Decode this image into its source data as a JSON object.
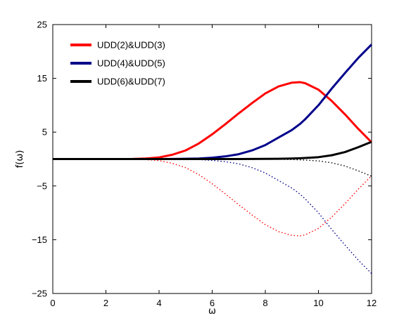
{
  "chart_data": {
    "type": "line",
    "title": "",
    "xlabel": "ω",
    "ylabel": "f(ω)",
    "xlim": [
      0,
      12
    ],
    "ylim": [
      -25,
      25
    ],
    "xticks": [
      "0",
      "2",
      "4",
      "6",
      "8",
      "10",
      "12"
    ],
    "yticks": [
      "25",
      "15",
      "5",
      "−5",
      "−15",
      "−25"
    ],
    "grid": false,
    "legend_position": "top-left",
    "x": [
      0,
      1,
      2,
      3,
      3.5,
      4,
      4.5,
      5,
      5.5,
      6,
      6.5,
      7,
      7.5,
      8,
      8.5,
      9,
      9.3,
      9.5,
      10,
      10.5,
      11,
      11.5,
      12
    ],
    "series": [
      {
        "name": "UDD(2)&UDD(3)",
        "color": "#ff0000",
        "style": "solid",
        "values": [
          0,
          0,
          0,
          0.02,
          0.1,
          0.3,
          0.8,
          1.6,
          2.9,
          4.6,
          6.5,
          8.5,
          10.4,
          12.2,
          13.5,
          14.2,
          14.3,
          14.1,
          12.9,
          10.8,
          8.3,
          5.6,
          3.1
        ]
      },
      {
        "name": "",
        "color": "#ff0000",
        "style": "dotted",
        "values": [
          0,
          0,
          0,
          -0.02,
          -0.1,
          -0.3,
          -0.8,
          -1.6,
          -2.9,
          -4.6,
          -6.5,
          -8.5,
          -10.4,
          -12.2,
          -13.5,
          -14.2,
          -14.3,
          -14.1,
          -12.9,
          -10.8,
          -8.3,
          -5.6,
          -3.1
        ]
      },
      {
        "name": "UDD(4)&UDD(5)",
        "color": "#00008b",
        "style": "solid",
        "values": [
          0,
          0,
          0,
          0,
          0,
          0,
          0.02,
          0.05,
          0.1,
          0.25,
          0.5,
          0.9,
          1.6,
          2.6,
          4,
          5.4,
          6.5,
          7.4,
          10,
          13.1,
          16,
          18.8,
          21.3
        ]
      },
      {
        "name": "",
        "color": "#00008b",
        "style": "dotted",
        "values": [
          0,
          0,
          0,
          0,
          0,
          0,
          -0.02,
          -0.05,
          -0.1,
          -0.25,
          -0.5,
          -0.9,
          -1.6,
          -2.6,
          -4,
          -5.4,
          -6.5,
          -7.4,
          -10,
          -13.1,
          -16,
          -18.8,
          -21.3
        ]
      },
      {
        "name": "UDD(6)&UDD(7)",
        "color": "#000000",
        "style": "solid",
        "values": [
          0,
          0,
          0,
          0,
          0,
          0,
          0,
          0,
          0,
          0,
          0,
          0,
          0.02,
          0.03,
          0.05,
          0.1,
          0.15,
          0.2,
          0.35,
          0.7,
          1.3,
          2.2,
          3.2
        ]
      },
      {
        "name": "",
        "color": "#000000",
        "style": "dotted",
        "values": [
          0,
          0,
          0,
          0,
          0,
          0,
          0,
          0,
          0,
          0,
          0,
          0,
          -0.02,
          -0.03,
          -0.05,
          -0.1,
          -0.15,
          -0.2,
          -0.35,
          -0.7,
          -1.3,
          -2.2,
          -3.2
        ]
      }
    ]
  }
}
